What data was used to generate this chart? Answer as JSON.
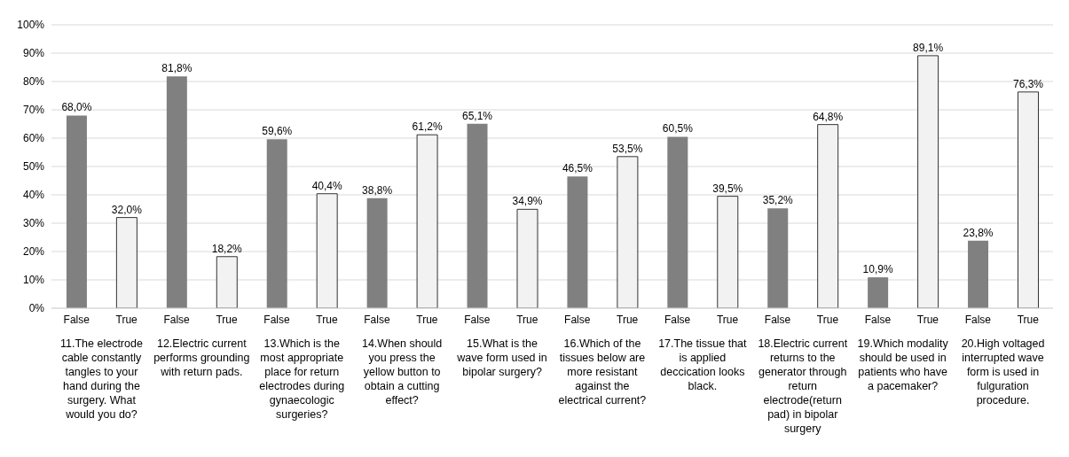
{
  "chart_data": {
    "type": "bar",
    "categories": [
      "False",
      "True",
      "False",
      "True",
      "False",
      "True",
      "False",
      "True",
      "False",
      "True",
      "False",
      "True",
      "False",
      "True",
      "False",
      "True",
      "False",
      "True",
      "False",
      "True"
    ],
    "values": [
      68.0,
      32.0,
      81.8,
      18.2,
      59.6,
      40.4,
      38.8,
      61.2,
      65.1,
      34.9,
      46.5,
      53.5,
      60.5,
      39.5,
      35.2,
      64.8,
      10.9,
      89.1,
      23.8,
      76.3
    ],
    "value_labels": [
      "68,0%",
      "32,0%",
      "81,8%",
      "18,2%",
      "59,6%",
      "40,4%",
      "38,8%",
      "61,2%",
      "65,1%",
      "34,9%",
      "46,5%",
      "53,5%",
      "60,5%",
      "39,5%",
      "35,2%",
      "64,8%",
      "10,9%",
      "89,1%",
      "23,8%",
      "76,3%"
    ],
    "colors": [
      "#808080",
      "#f2f2f2",
      "#808080",
      "#f2f2f2",
      "#808080",
      "#f2f2f2",
      "#808080",
      "#f2f2f2",
      "#808080",
      "#f2f2f2",
      "#808080",
      "#f2f2f2",
      "#808080",
      "#f2f2f2",
      "#808080",
      "#f2f2f2",
      "#808080",
      "#f2f2f2",
      "#808080",
      "#f2f2f2"
    ],
    "ylim": [
      0,
      100
    ],
    "yticks": [
      {
        "value": 0,
        "label": "0%"
      },
      {
        "value": 10,
        "label": "10%"
      },
      {
        "value": 20,
        "label": "20%"
      },
      {
        "value": 30,
        "label": "30%"
      },
      {
        "value": 40,
        "label": "40%"
      },
      {
        "value": 50,
        "label": "50%"
      },
      {
        "value": 60,
        "label": "60%"
      },
      {
        "value": 70,
        "label": "70%"
      },
      {
        "value": 80,
        "label": "80%"
      },
      {
        "value": 90,
        "label": "90%"
      },
      {
        "value": 100,
        "label": "100%"
      }
    ],
    "grid": "y",
    "legend": false,
    "annotations": [
      "11.The electrode cable constantly tangles to your hand during the surgery. What would you do?",
      "12.Electric current performs grounding with return pads.",
      "13.Which is the most appropriate place for return electrodes during gynaecologic surgeries?",
      "14.When should you press the yellow button to obtain a cutting effect?",
      "15.What is the wave form used in bipolar surgery?",
      "16.Which of the tissues below are more resistant against the electrical current?",
      "17.The tissue that is applied deccication looks black.",
      "18.Electric current returns to the generator through return electrode(return pad) in bipolar surgery",
      "19.Which modality should be used in patients who have a pacemaker?",
      "20.High voltaged interrupted wave form is used in fulguration procedure."
    ]
  }
}
